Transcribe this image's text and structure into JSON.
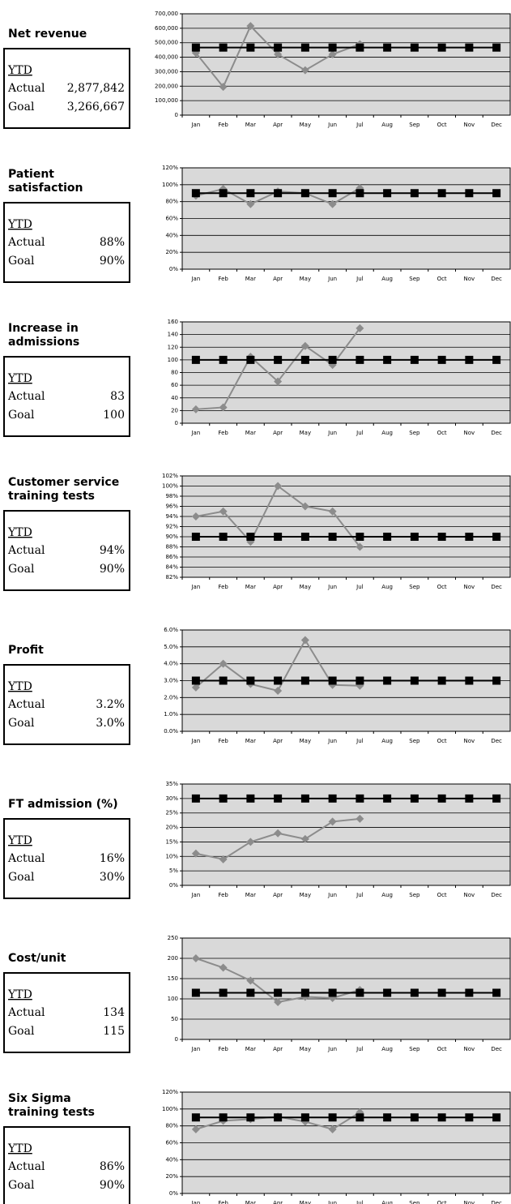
{
  "chart_data": [
    {
      "type": "line",
      "title": [
        "Net revenue"
      ],
      "summary": {
        "heading": "YTD",
        "actual_label": "Actual",
        "actual": "2,877,842",
        "goal_label": "Goal",
        "goal": "3,266,667"
      },
      "categories": [
        "Jan",
        "Feb",
        "Mar",
        "Apr",
        "May",
        "Jun",
        "Jul",
        "Aug",
        "Sep",
        "Oct",
        "Nov",
        "Dec"
      ],
      "series": [
        {
          "color": "#8c8c8c",
          "marker": "diamond",
          "values": [
            430000,
            195000,
            615000,
            420000,
            310000,
            420000,
            490000,
            null,
            null,
            null,
            null,
            null
          ]
        },
        {
          "color": "#000000",
          "marker": "square",
          "values": [
            466667,
            466667,
            466667,
            466667,
            466667,
            466667,
            466667,
            466667,
            466667,
            466667,
            466667,
            466667
          ]
        }
      ],
      "ylim": [
        0,
        700000
      ],
      "yticks": [
        0,
        {
          "value": 100000,
          "label": "100,000"
        },
        {
          "value": 200000,
          "label": "200,000"
        },
        {
          "value": 300000,
          "label": "300,000"
        },
        {
          "value": 400000,
          "label": "400,000"
        },
        {
          "value": 500000,
          "label": "500,000"
        },
        {
          "value": 600000,
          "label": "600,000"
        },
        {
          "value": 700000,
          "label": "700,000"
        }
      ],
      "grid": true
    },
    {
      "type": "line",
      "title": [
        "Patient",
        "satisfaction"
      ],
      "summary": {
        "heading": "YTD",
        "actual_label": "Actual",
        "actual": "88%",
        "goal_label": "Goal",
        "goal": "90%"
      },
      "categories": [
        "Jan",
        "Feb",
        "Mar",
        "Apr",
        "May",
        "Jun",
        "Jul",
        "Aug",
        "Sep",
        "Oct",
        "Nov",
        "Dec"
      ],
      "series": [
        {
          "color": "#8c8c8c",
          "marker": "diamond",
          "values": [
            87,
            95,
            77,
            92,
            90,
            77,
            96,
            null,
            null,
            null,
            null,
            null
          ]
        },
        {
          "color": "#000000",
          "marker": "square",
          "values": [
            90,
            90,
            90,
            90,
            90,
            90,
            90,
            90,
            90,
            90,
            90,
            90
          ]
        }
      ],
      "ylim": [
        0,
        120
      ],
      "yticks": [
        {
          "value": 0,
          "label": "0%"
        },
        {
          "value": 20,
          "label": "20%"
        },
        {
          "value": 40,
          "label": "40%"
        },
        {
          "value": 60,
          "label": "60%"
        },
        {
          "value": 80,
          "label": "80%"
        },
        {
          "value": 100,
          "label": "100%"
        },
        {
          "value": 120,
          "label": "120%"
        }
      ],
      "grid": true
    },
    {
      "type": "line",
      "title": [
        "Increase in",
        "admissions"
      ],
      "summary": {
        "heading": "YTD",
        "actual_label": "Actual",
        "actual": "83",
        "goal_label": "Goal",
        "goal": "100"
      },
      "categories": [
        "Jan",
        "Feb",
        "Mar",
        "Apr",
        "May",
        "Jun",
        "Jul",
        "Aug",
        "Sep",
        "Oct",
        "Nov",
        "Dec"
      ],
      "series": [
        {
          "color": "#8c8c8c",
          "marker": "diamond",
          "values": [
            22,
            25,
            105,
            66,
            122,
            92,
            150,
            null,
            null,
            null,
            null,
            null
          ]
        },
        {
          "color": "#000000",
          "marker": "square",
          "values": [
            100,
            100,
            100,
            100,
            100,
            100,
            100,
            100,
            100,
            100,
            100,
            100
          ]
        }
      ],
      "ylim": [
        0,
        160
      ],
      "yticks": [
        0,
        20,
        40,
        60,
        80,
        100,
        120,
        140,
        160
      ],
      "grid": true
    },
    {
      "type": "line",
      "title": [
        "Customer service",
        "training tests"
      ],
      "summary": {
        "heading": "YTD",
        "actual_label": "Actual",
        "actual": "94%",
        "goal_label": "Goal",
        "goal": "90%"
      },
      "categories": [
        "Jan",
        "Feb",
        "Mar",
        "Apr",
        "May",
        "Jun",
        "Jul",
        "Aug",
        "Sep",
        "Oct",
        "Nov",
        "Dec"
      ],
      "series": [
        {
          "color": "#8c8c8c",
          "marker": "diamond",
          "values": [
            94,
            95,
            89,
            100,
            96,
            95,
            88,
            null,
            null,
            null,
            null,
            null
          ]
        },
        {
          "color": "#000000",
          "marker": "square",
          "values": [
            90,
            90,
            90,
            90,
            90,
            90,
            90,
            90,
            90,
            90,
            90,
            90
          ]
        }
      ],
      "ylim": [
        82,
        102
      ],
      "yticks": [
        {
          "value": 82,
          "label": "82%"
        },
        {
          "value": 84,
          "label": "84%"
        },
        {
          "value": 86,
          "label": "86%"
        },
        {
          "value": 88,
          "label": "88%"
        },
        {
          "value": 90,
          "label": "90%"
        },
        {
          "value": 92,
          "label": "92%"
        },
        {
          "value": 94,
          "label": "94%"
        },
        {
          "value": 96,
          "label": "96%"
        },
        {
          "value": 98,
          "label": "98%"
        },
        {
          "value": 100,
          "label": "100%"
        },
        {
          "value": 102,
          "label": "102%"
        }
      ],
      "grid": true
    },
    {
      "type": "line",
      "title": [
        "Profit"
      ],
      "summary": {
        "heading": "YTD",
        "actual_label": "Actual",
        "actual": "3.2%",
        "goal_label": "Goal",
        "goal": "3.0%"
      },
      "categories": [
        "Jan",
        "Feb",
        "Mar",
        "Apr",
        "May",
        "Jun",
        "Jul",
        "Aug",
        "Sep",
        "Oct",
        "Nov",
        "Dec"
      ],
      "series": [
        {
          "color": "#8c8c8c",
          "marker": "diamond",
          "values": [
            2.6,
            4.0,
            2.8,
            2.4,
            5.4,
            2.75,
            2.7,
            null,
            null,
            null,
            null,
            null
          ]
        },
        {
          "color": "#000000",
          "marker": "square",
          "values": [
            3,
            3,
            3,
            3,
            3,
            3,
            3,
            3,
            3,
            3,
            3,
            3
          ]
        }
      ],
      "ylim": [
        0,
        6
      ],
      "yticks": [
        {
          "value": 0,
          "label": "0.0%"
        },
        {
          "value": 1,
          "label": "1.0%"
        },
        {
          "value": 2,
          "label": "2.0%"
        },
        {
          "value": 3,
          "label": "3.0%"
        },
        {
          "value": 4,
          "label": "4.0%"
        },
        {
          "value": 5,
          "label": "5.0%"
        },
        {
          "value": 6,
          "label": "6.0%"
        }
      ],
      "grid": true
    },
    {
      "type": "line",
      "title": [
        "FT admission (%)"
      ],
      "summary": {
        "heading": "YTD",
        "actual_label": "Actual",
        "actual": "16%",
        "goal_label": "Goal",
        "goal": "30%"
      },
      "categories": [
        "Jan",
        "Feb",
        "Mar",
        "Apr",
        "May",
        "Jun",
        "Jul",
        "Aug",
        "Sep",
        "Oct",
        "Nov",
        "Dec"
      ],
      "series": [
        {
          "color": "#8c8c8c",
          "marker": "diamond",
          "values": [
            11,
            9,
            15,
            18,
            16,
            22,
            23,
            null,
            null,
            null,
            null,
            null
          ]
        },
        {
          "color": "#000000",
          "marker": "square",
          "values": [
            30,
            30,
            30,
            30,
            30,
            30,
            30,
            30,
            30,
            30,
            30,
            30
          ]
        }
      ],
      "ylim": [
        0,
        35
      ],
      "yticks": [
        {
          "value": 0,
          "label": "0%"
        },
        {
          "value": 5,
          "label": "5%"
        },
        {
          "value": 10,
          "label": "10%"
        },
        {
          "value": 15,
          "label": "15%"
        },
        {
          "value": 20,
          "label": "20%"
        },
        {
          "value": 25,
          "label": "25%"
        },
        {
          "value": 30,
          "label": "30%"
        },
        {
          "value": 35,
          "label": "35%"
        }
      ],
      "grid": true
    },
    {
      "type": "line",
      "title": [
        "Cost/unit"
      ],
      "summary": {
        "heading": "YTD",
        "actual_label": "Actual",
        "actual": "134",
        "goal_label": "Goal",
        "goal": "115"
      },
      "categories": [
        "Jan",
        "Feb",
        "Mar",
        "Apr",
        "May",
        "Jun",
        "Jul",
        "Aug",
        "Sep",
        "Oct",
        "Nov",
        "Dec"
      ],
      "series": [
        {
          "color": "#8c8c8c",
          "marker": "diamond",
          "values": [
            200,
            177,
            145,
            92,
            105,
            102,
            122,
            null,
            null,
            null,
            null,
            null
          ]
        },
        {
          "color": "#000000",
          "marker": "square",
          "values": [
            115,
            115,
            115,
            115,
            115,
            115,
            115,
            115,
            115,
            115,
            115,
            115
          ]
        }
      ],
      "ylim": [
        0,
        250
      ],
      "yticks": [
        0,
        50,
        100,
        150,
        200,
        250
      ],
      "grid": true
    },
    {
      "type": "line",
      "title": [
        "Six Sigma",
        "training tests"
      ],
      "summary": {
        "heading": "YTD",
        "actual_label": "Actual",
        "actual": "86%",
        "goal_label": "Goal",
        "goal": "90%"
      },
      "categories": [
        "Jan",
        "Feb",
        "Mar",
        "Apr",
        "May",
        "Jun",
        "Jul",
        "Aug",
        "Sep",
        "Oct",
        "Nov",
        "Dec"
      ],
      "series": [
        {
          "color": "#8c8c8c",
          "marker": "diamond",
          "values": [
            76,
            86,
            88,
            91,
            85,
            76,
            96,
            null,
            null,
            null,
            null,
            null
          ]
        },
        {
          "color": "#000000",
          "marker": "square",
          "values": [
            90,
            90,
            90,
            90,
            90,
            90,
            90,
            90,
            90,
            90,
            90,
            90
          ]
        }
      ],
      "ylim": [
        0,
        120
      ],
      "yticks": [
        {
          "value": 0,
          "label": "0%"
        },
        {
          "value": 20,
          "label": "20%"
        },
        {
          "value": 40,
          "label": "40%"
        },
        {
          "value": 60,
          "label": "60%"
        },
        {
          "value": 80,
          "label": "80%"
        },
        {
          "value": 100,
          "label": "100%"
        },
        {
          "value": 120,
          "label": "120%"
        }
      ],
      "grid": true
    }
  ]
}
